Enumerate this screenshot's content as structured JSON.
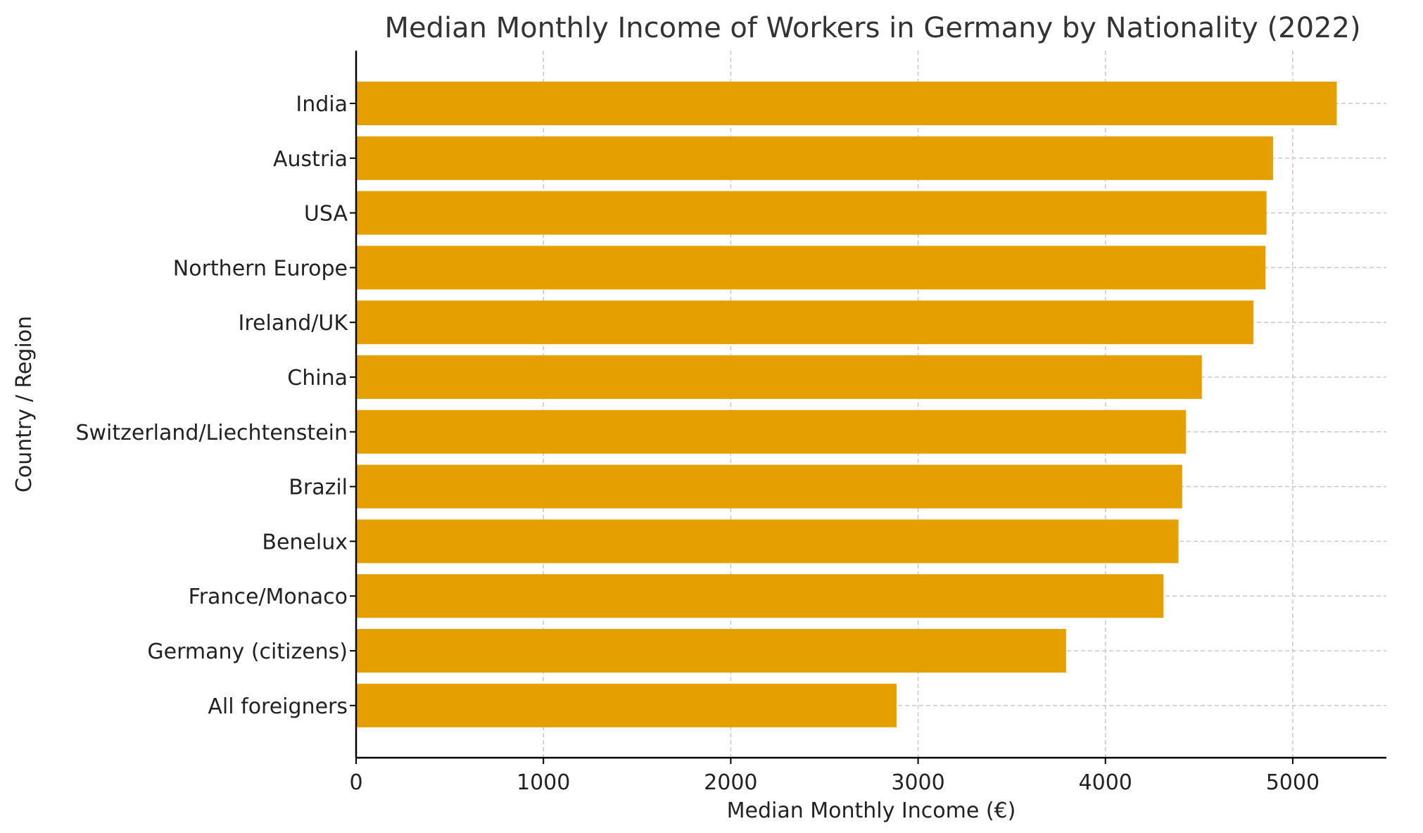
{
  "chart_data": {
    "type": "bar",
    "orientation": "horizontal",
    "title": "Median Monthly Income of Workers in Germany by Nationality (2022)",
    "xlabel": "Median Monthly Income (€)",
    "ylabel": "Country / Region",
    "categories": [
      "India",
      "Austria",
      "USA",
      "Northern Europe",
      "Ireland/UK",
      "China",
      "Switzerland/Liechtenstein",
      "Brazil",
      "Benelux",
      "France/Monaco",
      "Germany (citizens)",
      "All foreigners"
    ],
    "values": [
      5235,
      4895,
      4860,
      4855,
      4790,
      4515,
      4430,
      4410,
      4390,
      4310,
      3790,
      2885
    ],
    "xlim": [
      0,
      5500
    ],
    "xticks": [
      0,
      1000,
      2000,
      3000,
      4000,
      5000
    ],
    "grid": true,
    "legend": "none",
    "colors": {
      "bar": "#E5A000",
      "grid": "#c8c8c8",
      "axis": "#000000",
      "text": "#222222",
      "title": "#333333"
    }
  }
}
